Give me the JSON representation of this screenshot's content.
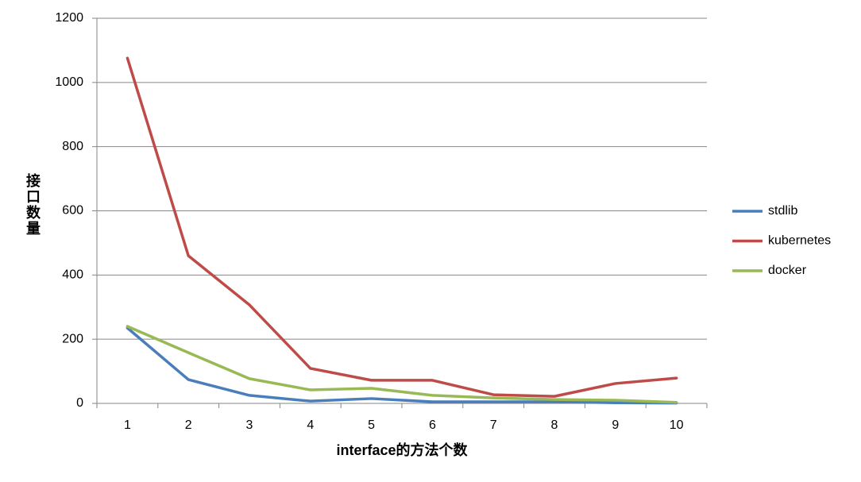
{
  "chart_data": {
    "type": "line",
    "x_label": "interface的方法个数",
    "y_label": "接口数量",
    "categories": [
      "1",
      "2",
      "3",
      "4",
      "5",
      "6",
      "7",
      "8",
      "9",
      "10"
    ],
    "series": [
      {
        "name": "stdlib",
        "color": "#4a7ebb",
        "values": [
          235,
          74,
          25,
          7,
          15,
          5,
          5,
          5,
          2,
          1
        ]
      },
      {
        "name": "kubernetes",
        "color": "#be4b48",
        "values": [
          1076,
          460,
          307,
          109,
          72,
          72,
          27,
          22,
          62,
          79
        ]
      },
      {
        "name": "docker",
        "color": "#98b954",
        "values": [
          240,
          158,
          77,
          42,
          47,
          25,
          17,
          12,
          10,
          3
        ]
      }
    ],
    "ylim": [
      0,
      1200
    ],
    "yticks": [
      0,
      200,
      400,
      600,
      800,
      1000,
      1200
    ],
    "grid": true,
    "legend": "right"
  }
}
